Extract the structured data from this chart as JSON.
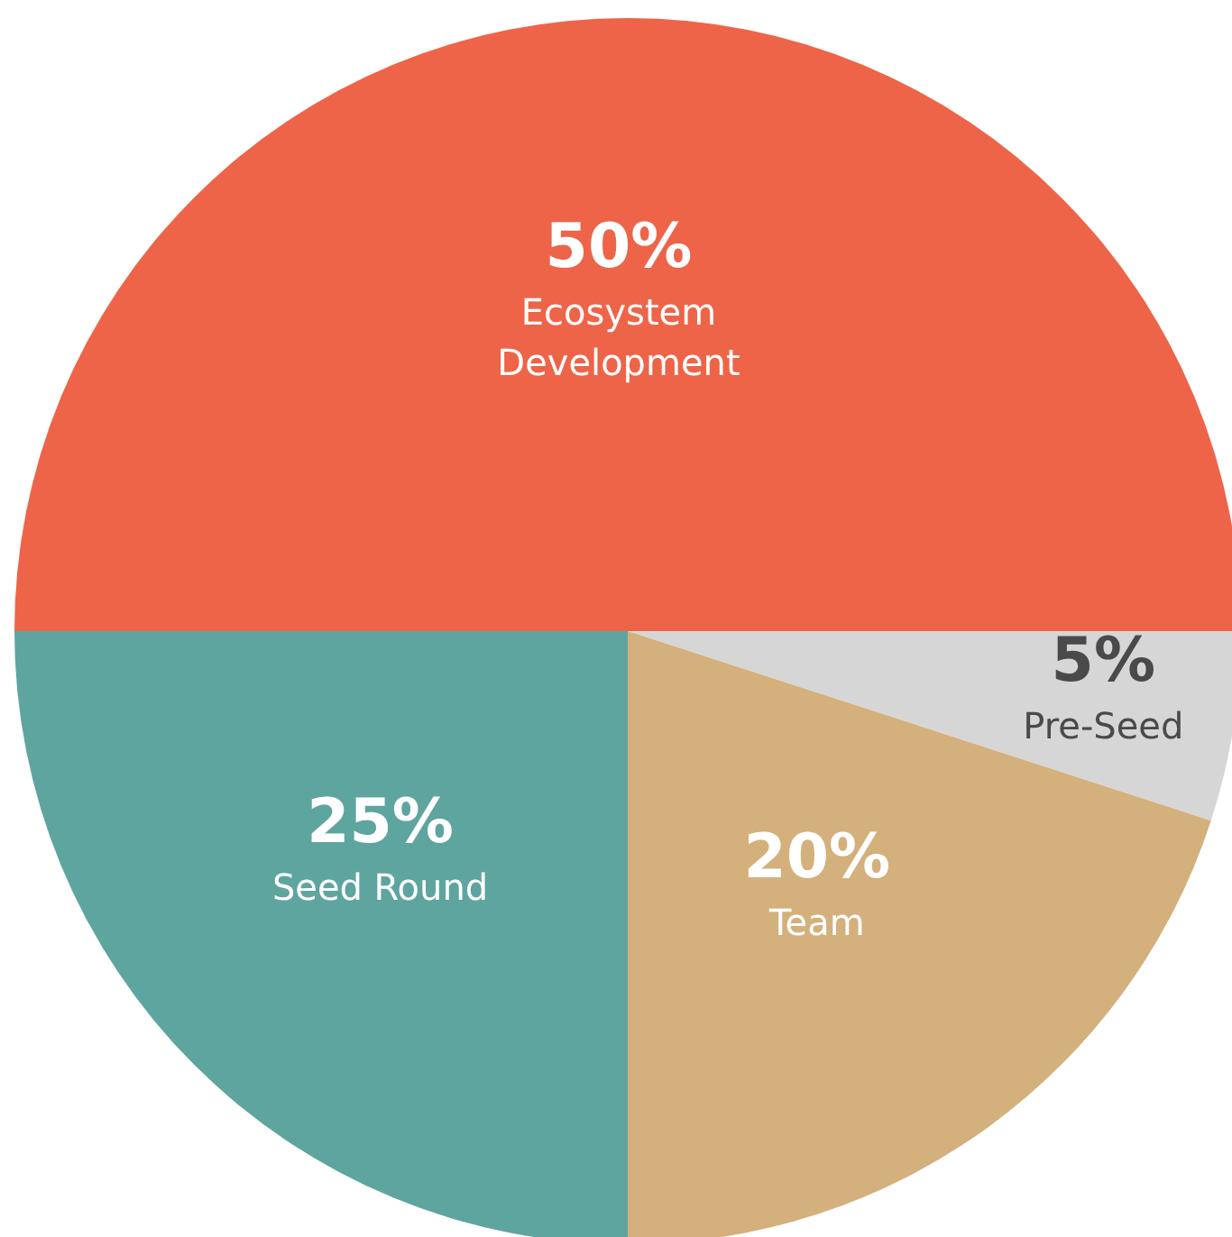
{
  "chart_data": {
    "type": "pie",
    "categories": [
      "Ecosystem Development",
      "Pre-Seed",
      "Team",
      "Seed Round"
    ],
    "values": [
      50,
      5,
      20,
      25
    ],
    "colors": [
      "#ee6449",
      "#d6d6d6",
      "#d4b07c",
      "#5ea59f"
    ],
    "value_labels": [
      "50%",
      "5%",
      "20%",
      "25%"
    ],
    "legend": false
  }
}
